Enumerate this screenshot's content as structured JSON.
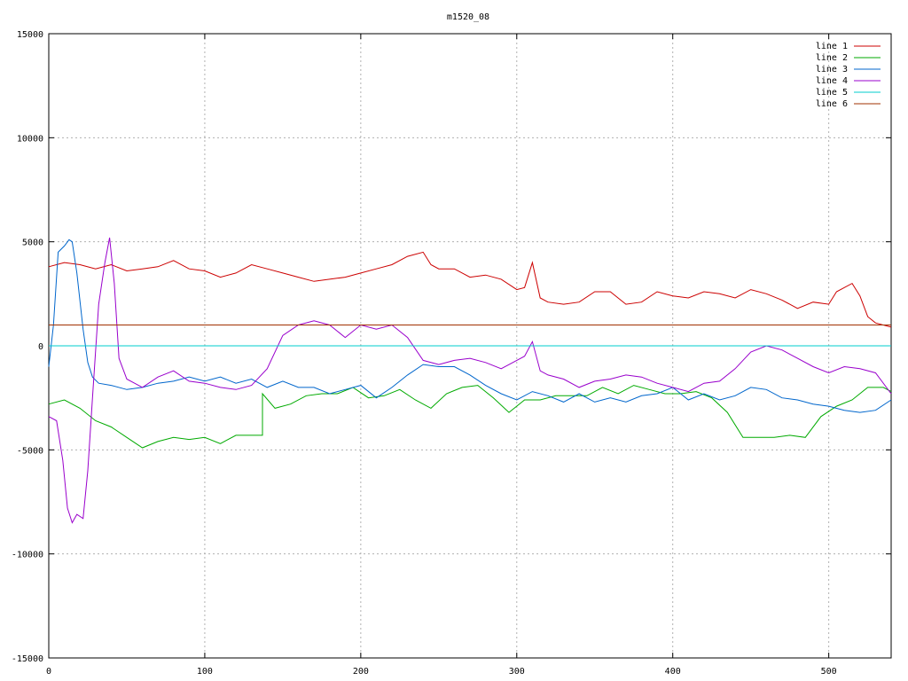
{
  "chart_data": {
    "type": "line",
    "title": "m1520_08",
    "xlabel": "",
    "ylabel": "",
    "xlim": [
      0,
      540
    ],
    "ylim": [
      -15000,
      15000
    ],
    "x_ticks": [
      0,
      100,
      200,
      300,
      400,
      500
    ],
    "y_ticks": [
      -15000,
      -10000,
      -5000,
      0,
      5000,
      10000,
      15000
    ],
    "grid": true,
    "legend_position": "top-right",
    "series": [
      {
        "name": "line 1",
        "color": "#cc0000",
        "points": [
          [
            0,
            3800
          ],
          [
            10,
            4000
          ],
          [
            20,
            3900
          ],
          [
            30,
            3700
          ],
          [
            40,
            3900
          ],
          [
            50,
            3600
          ],
          [
            60,
            3700
          ],
          [
            70,
            3800
          ],
          [
            80,
            4100
          ],
          [
            90,
            3700
          ],
          [
            100,
            3600
          ],
          [
            110,
            3300
          ],
          [
            120,
            3500
          ],
          [
            130,
            3900
          ],
          [
            140,
            3700
          ],
          [
            150,
            3500
          ],
          [
            160,
            3300
          ],
          [
            170,
            3100
          ],
          [
            180,
            3200
          ],
          [
            190,
            3300
          ],
          [
            200,
            3500
          ],
          [
            210,
            3700
          ],
          [
            220,
            3900
          ],
          [
            230,
            4300
          ],
          [
            240,
            4500
          ],
          [
            245,
            3900
          ],
          [
            250,
            3700
          ],
          [
            260,
            3700
          ],
          [
            270,
            3300
          ],
          [
            280,
            3400
          ],
          [
            290,
            3200
          ],
          [
            300,
            2700
          ],
          [
            305,
            2800
          ],
          [
            310,
            4000
          ],
          [
            315,
            2300
          ],
          [
            320,
            2100
          ],
          [
            330,
            2000
          ],
          [
            340,
            2100
          ],
          [
            350,
            2600
          ],
          [
            360,
            2600
          ],
          [
            370,
            2000
          ],
          [
            380,
            2100
          ],
          [
            390,
            2600
          ],
          [
            400,
            2400
          ],
          [
            410,
            2300
          ],
          [
            420,
            2600
          ],
          [
            430,
            2500
          ],
          [
            440,
            2300
          ],
          [
            450,
            2700
          ],
          [
            460,
            2500
          ],
          [
            470,
            2200
          ],
          [
            480,
            1800
          ],
          [
            490,
            2100
          ],
          [
            500,
            2000
          ],
          [
            505,
            2600
          ],
          [
            515,
            3000
          ],
          [
            520,
            2400
          ],
          [
            525,
            1400
          ],
          [
            530,
            1100
          ],
          [
            540,
            900
          ]
        ]
      },
      {
        "name": "line 2",
        "color": "#00aa00",
        "points": [
          [
            0,
            -2800
          ],
          [
            10,
            -2600
          ],
          [
            20,
            -3000
          ],
          [
            30,
            -3600
          ],
          [
            40,
            -3900
          ],
          [
            50,
            -4400
          ],
          [
            60,
            -4900
          ],
          [
            70,
            -4600
          ],
          [
            80,
            -4400
          ],
          [
            90,
            -4500
          ],
          [
            100,
            -4400
          ],
          [
            110,
            -4700
          ],
          [
            120,
            -4300
          ],
          [
            130,
            -4300
          ],
          [
            137,
            -4300
          ],
          [
            137,
            -2300
          ],
          [
            145,
            -3000
          ],
          [
            155,
            -2800
          ],
          [
            165,
            -2400
          ],
          [
            175,
            -2300
          ],
          [
            185,
            -2300
          ],
          [
            195,
            -2000
          ],
          [
            205,
            -2500
          ],
          [
            215,
            -2400
          ],
          [
            225,
            -2100
          ],
          [
            235,
            -2600
          ],
          [
            245,
            -3000
          ],
          [
            255,
            -2300
          ],
          [
            265,
            -2000
          ],
          [
            275,
            -1900
          ],
          [
            285,
            -2500
          ],
          [
            295,
            -3200
          ],
          [
            305,
            -2600
          ],
          [
            315,
            -2600
          ],
          [
            325,
            -2400
          ],
          [
            335,
            -2400
          ],
          [
            345,
            -2400
          ],
          [
            355,
            -2000
          ],
          [
            365,
            -2300
          ],
          [
            375,
            -1900
          ],
          [
            385,
            -2100
          ],
          [
            395,
            -2300
          ],
          [
            405,
            -2300
          ],
          [
            415,
            -2200
          ],
          [
            425,
            -2500
          ],
          [
            435,
            -3200
          ],
          [
            445,
            -4400
          ],
          [
            455,
            -4400
          ],
          [
            465,
            -4400
          ],
          [
            475,
            -4300
          ],
          [
            485,
            -4400
          ],
          [
            495,
            -3400
          ],
          [
            505,
            -2900
          ],
          [
            515,
            -2600
          ],
          [
            525,
            -2000
          ],
          [
            535,
            -2000
          ],
          [
            540,
            -2200
          ]
        ]
      },
      {
        "name": "line 3",
        "color": "#0066cc",
        "points": [
          [
            0,
            -1000
          ],
          [
            3,
            1000
          ],
          [
            6,
            4500
          ],
          [
            10,
            4800
          ],
          [
            13,
            5100
          ],
          [
            15,
            5000
          ],
          [
            18,
            3500
          ],
          [
            22,
            800
          ],
          [
            25,
            -800
          ],
          [
            28,
            -1500
          ],
          [
            32,
            -1800
          ],
          [
            40,
            -1900
          ],
          [
            50,
            -2100
          ],
          [
            60,
            -2000
          ],
          [
            70,
            -1800
          ],
          [
            80,
            -1700
          ],
          [
            90,
            -1500
          ],
          [
            100,
            -1700
          ],
          [
            110,
            -1500
          ],
          [
            120,
            -1800
          ],
          [
            130,
            -1600
          ],
          [
            140,
            -2000
          ],
          [
            150,
            -1700
          ],
          [
            160,
            -2000
          ],
          [
            170,
            -2000
          ],
          [
            180,
            -2300
          ],
          [
            190,
            -2100
          ],
          [
            200,
            -1900
          ],
          [
            210,
            -2500
          ],
          [
            220,
            -2000
          ],
          [
            230,
            -1400
          ],
          [
            240,
            -900
          ],
          [
            250,
            -1000
          ],
          [
            260,
            -1000
          ],
          [
            270,
            -1400
          ],
          [
            280,
            -1900
          ],
          [
            290,
            -2300
          ],
          [
            300,
            -2600
          ],
          [
            310,
            -2200
          ],
          [
            320,
            -2400
          ],
          [
            330,
            -2700
          ],
          [
            340,
            -2300
          ],
          [
            350,
            -2700
          ],
          [
            360,
            -2500
          ],
          [
            370,
            -2700
          ],
          [
            380,
            -2400
          ],
          [
            390,
            -2300
          ],
          [
            400,
            -2000
          ],
          [
            410,
            -2600
          ],
          [
            420,
            -2300
          ],
          [
            430,
            -2600
          ],
          [
            440,
            -2400
          ],
          [
            450,
            -2000
          ],
          [
            460,
            -2100
          ],
          [
            470,
            -2500
          ],
          [
            480,
            -2600
          ],
          [
            490,
            -2800
          ],
          [
            500,
            -2900
          ],
          [
            510,
            -3100
          ],
          [
            520,
            -3200
          ],
          [
            530,
            -3100
          ],
          [
            540,
            -2600
          ]
        ]
      },
      {
        "name": "line 4",
        "color": "#9900cc",
        "points": [
          [
            0,
            -3400
          ],
          [
            5,
            -3600
          ],
          [
            9,
            -5500
          ],
          [
            12,
            -7800
          ],
          [
            15,
            -8500
          ],
          [
            18,
            -8100
          ],
          [
            22,
            -8300
          ],
          [
            25,
            -6000
          ],
          [
            28,
            -2500
          ],
          [
            32,
            2000
          ],
          [
            36,
            4000
          ],
          [
            39,
            5200
          ],
          [
            42,
            3000
          ],
          [
            45,
            -600
          ],
          [
            50,
            -1600
          ],
          [
            55,
            -1800
          ],
          [
            60,
            -2000
          ],
          [
            70,
            -1500
          ],
          [
            80,
            -1200
          ],
          [
            90,
            -1700
          ],
          [
            100,
            -1800
          ],
          [
            110,
            -2000
          ],
          [
            120,
            -2100
          ],
          [
            130,
            -1900
          ],
          [
            140,
            -1100
          ],
          [
            150,
            500
          ],
          [
            160,
            1000
          ],
          [
            170,
            1200
          ],
          [
            180,
            1000
          ],
          [
            190,
            400
          ],
          [
            200,
            1000
          ],
          [
            210,
            800
          ],
          [
            220,
            1000
          ],
          [
            230,
            400
          ],
          [
            240,
            -700
          ],
          [
            250,
            -900
          ],
          [
            260,
            -700
          ],
          [
            270,
            -600
          ],
          [
            280,
            -800
          ],
          [
            290,
            -1100
          ],
          [
            300,
            -700
          ],
          [
            305,
            -500
          ],
          [
            310,
            200
          ],
          [
            315,
            -1200
          ],
          [
            320,
            -1400
          ],
          [
            330,
            -1600
          ],
          [
            340,
            -2000
          ],
          [
            350,
            -1700
          ],
          [
            360,
            -1600
          ],
          [
            370,
            -1400
          ],
          [
            380,
            -1500
          ],
          [
            390,
            -1800
          ],
          [
            400,
            -2000
          ],
          [
            410,
            -2200
          ],
          [
            420,
            -1800
          ],
          [
            430,
            -1700
          ],
          [
            440,
            -1100
          ],
          [
            450,
            -300
          ],
          [
            460,
            0
          ],
          [
            470,
            -200
          ],
          [
            480,
            -600
          ],
          [
            490,
            -1000
          ],
          [
            500,
            -1300
          ],
          [
            510,
            -1000
          ],
          [
            520,
            -1100
          ],
          [
            530,
            -1300
          ],
          [
            540,
            -2300
          ]
        ]
      },
      {
        "name": "line 5",
        "color": "#00cccc",
        "points": [
          [
            0,
            0
          ],
          [
            20,
            0
          ],
          [
            40,
            0
          ],
          [
            60,
            0
          ],
          [
            80,
            0
          ],
          [
            100,
            0
          ],
          [
            120,
            0
          ],
          [
            140,
            0
          ],
          [
            160,
            0
          ],
          [
            180,
            0
          ],
          [
            200,
            0
          ],
          [
            220,
            0
          ],
          [
            240,
            0
          ],
          [
            260,
            0
          ],
          [
            280,
            0
          ],
          [
            300,
            0
          ],
          [
            320,
            0
          ],
          [
            340,
            0
          ],
          [
            360,
            0
          ],
          [
            380,
            0
          ],
          [
            400,
            0
          ],
          [
            420,
            0
          ],
          [
            440,
            0
          ],
          [
            460,
            0
          ],
          [
            480,
            0
          ],
          [
            500,
            0
          ],
          [
            520,
            0
          ],
          [
            540,
            0
          ]
        ]
      },
      {
        "name": "line 6",
        "color": "#a03000",
        "points": [
          [
            0,
            1000
          ],
          [
            20,
            1000
          ],
          [
            40,
            1000
          ],
          [
            60,
            1000
          ],
          [
            80,
            1000
          ],
          [
            100,
            1000
          ],
          [
            120,
            1000
          ],
          [
            140,
            1000
          ],
          [
            160,
            1000
          ],
          [
            180,
            1000
          ],
          [
            200,
            1000
          ],
          [
            220,
            1000
          ],
          [
            240,
            1000
          ],
          [
            260,
            1000
          ],
          [
            280,
            1000
          ],
          [
            300,
            1000
          ],
          [
            320,
            1000
          ],
          [
            340,
            1000
          ],
          [
            360,
            1000
          ],
          [
            380,
            1000
          ],
          [
            400,
            1000
          ],
          [
            420,
            1000
          ],
          [
            440,
            1000
          ],
          [
            460,
            1000
          ],
          [
            480,
            1000
          ],
          [
            500,
            1000
          ],
          [
            520,
            1000
          ],
          [
            540,
            1000
          ]
        ]
      }
    ]
  }
}
